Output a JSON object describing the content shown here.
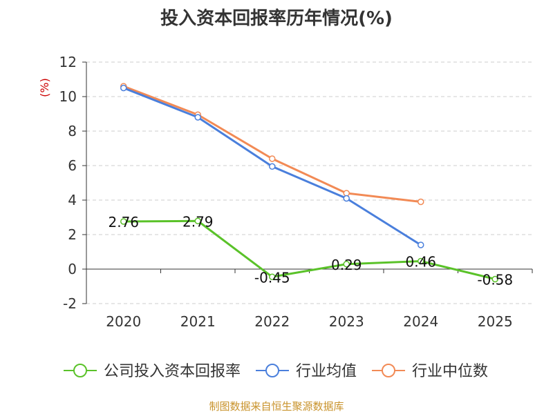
{
  "title": "投入资本回报率历年情况(%)",
  "source": "制图数据来自恒生聚源数据库",
  "chart_data": {
    "type": "line",
    "title": "投入资本回报率历年情况(%)",
    "ylabel": "(%)",
    "xlabel": "",
    "categories": [
      "2020",
      "2021",
      "2022",
      "2023",
      "2024",
      "2025"
    ],
    "ylim": [
      -2,
      12
    ],
    "yticks": [
      -2,
      0,
      2,
      4,
      6,
      8,
      10,
      12
    ],
    "grid": true,
    "legend_position": "bottom",
    "series": [
      {
        "name": "公司投入资本回报率",
        "color": "#5ac229",
        "values": [
          2.76,
          2.79,
          -0.45,
          0.29,
          0.46,
          -0.58
        ],
        "labels": [
          "2.76",
          "2.79",
          "-0.45",
          "0.29",
          "0.46",
          "-0.58"
        ]
      },
      {
        "name": "行业均值",
        "color": "#4a7fdc",
        "values": [
          10.5,
          8.8,
          5.95,
          4.1,
          1.4,
          null
        ]
      },
      {
        "name": "行业中位数",
        "color": "#f28a55",
        "values": [
          10.6,
          8.95,
          6.4,
          4.4,
          3.9,
          null
        ]
      }
    ]
  }
}
